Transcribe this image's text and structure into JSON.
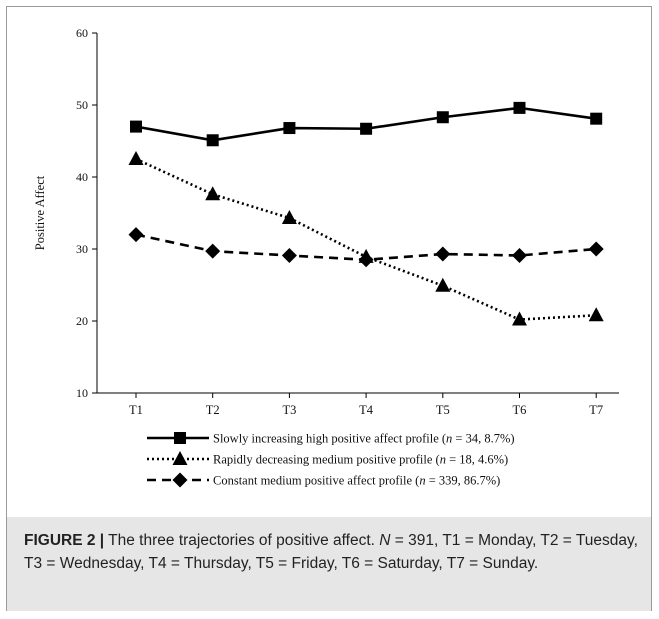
{
  "chart_data": {
    "type": "line",
    "categories": [
      "T1",
      "T2",
      "T3",
      "T4",
      "T5",
      "T6",
      "T7"
    ],
    "ylabel": "Positive Affect",
    "xlabel": "",
    "ylim": [
      10,
      60
    ],
    "yticks": [
      "10",
      "20",
      "30",
      "40",
      "50",
      "60"
    ],
    "grid": false,
    "legend_position": "bottom",
    "series": [
      {
        "marker": "square",
        "dash": "solid",
        "values": [
          47.0,
          45.1,
          46.8,
          46.7,
          48.3,
          49.6,
          48.1
        ],
        "legend": {
          "pre": "Slowly increasing high positive affect profile (",
          "n": "n",
          "post": " = 34, 8.7%)"
        }
      },
      {
        "marker": "triangle",
        "dash": "dotted",
        "values": [
          42.5,
          37.6,
          34.3,
          28.9,
          24.9,
          20.2,
          20.8
        ],
        "legend": {
          "pre": "Rapidly decreasing medium positive profile (",
          "n": "n",
          "post": " = 18, 4.6%)"
        }
      },
      {
        "marker": "diamond",
        "dash": "dashed",
        "values": [
          32.0,
          29.7,
          29.1,
          28.5,
          29.3,
          29.1,
          30.0
        ],
        "legend": {
          "pre": "Constant medium positive affect profile (",
          "n": "n",
          "post": " = 339, 86.7%)"
        }
      }
    ]
  },
  "caption": {
    "label": "FIGURE 2 |",
    "text_1": " The three trajectories of positive affect. ",
    "n_symbol": "N",
    "text_2": " = 391, T1 = Monday, T2 = Tuesday, T3 = Wednesday, T4 = Thursday, T5 = Friday, T6 = Saturday, T7 = Sunday."
  }
}
